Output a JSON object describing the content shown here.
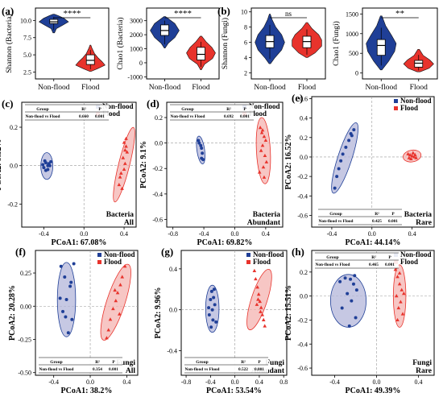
{
  "figure": {
    "colors": {
      "nonflood": "#1f3f97",
      "flood": "#e8332c",
      "nonflood_ellipse": "#b3b6d9",
      "flood_ellipse": "#f4b3b0"
    }
  },
  "chart_data": [
    {
      "id": "a1",
      "panel_label": "(a)",
      "type": "violin",
      "ylabel": "Shannon (Bacteria)",
      "categories": [
        "Non-flood",
        "Flood"
      ],
      "yticks": [
        2.5,
        5.0,
        7.5,
        10.0
      ],
      "ylim": [
        1.5,
        11.8
      ],
      "violins": [
        {
          "group": "Non-flood",
          "min": 8.2,
          "q1": 9.55,
          "median": 9.8,
          "q3": 10.15,
          "max": 10.9,
          "shape": [
            [
              8.2,
              0.05
            ],
            [
              8.8,
              0.18
            ],
            [
              9.3,
              0.6
            ],
            [
              9.8,
              1
            ],
            [
              10.3,
              0.7
            ],
            [
              10.7,
              0.3
            ],
            [
              10.9,
              0.05
            ]
          ]
        },
        {
          "group": "Flood",
          "min": 2.6,
          "q1": 3.6,
          "median": 4.2,
          "q3": 5.0,
          "max": 6.4,
          "shape": [
            [
              2.6,
              0.05
            ],
            [
              3.0,
              0.5
            ],
            [
              3.5,
              1
            ],
            [
              4.0,
              0.8
            ],
            [
              4.5,
              0.55
            ],
            [
              5.2,
              0.28
            ],
            [
              6.0,
              0.1
            ],
            [
              6.4,
              0.03
            ]
          ]
        }
      ],
      "significance": "****"
    },
    {
      "id": "a2",
      "type": "violin",
      "ylabel": "Chao1 (Bacteria)",
      "categories": [
        "Non-flood",
        "Flood"
      ],
      "yticks": [
        -1000,
        0,
        1000,
        2000,
        3000
      ],
      "ylim": [
        -1150,
        3900
      ],
      "violins": [
        {
          "group": "Non-flood",
          "min": 1050,
          "q1": 1950,
          "median": 2300,
          "q3": 2700,
          "max": 3300,
          "shape": [
            [
              1050,
              0.03
            ],
            [
              1400,
              0.25
            ],
            [
              1800,
              0.7
            ],
            [
              2300,
              1
            ],
            [
              2800,
              0.7
            ],
            [
              3100,
              0.3
            ],
            [
              3300,
              0.05
            ]
          ]
        },
        {
          "group": "Flood",
          "min": -500,
          "q1": 200,
          "median": 600,
          "q3": 1100,
          "max": 1900,
          "shape": [
            [
              -500,
              0.03
            ],
            [
              -100,
              0.25
            ],
            [
              300,
              0.8
            ],
            [
              700,
              1
            ],
            [
              1100,
              0.75
            ],
            [
              1500,
              0.35
            ],
            [
              1900,
              0.05
            ]
          ]
        }
      ],
      "significance": "****"
    },
    {
      "id": "b1",
      "panel_label": "(b)",
      "type": "violin",
      "ylabel": "Shannon (Fungi)",
      "categories": [
        "Non-flood",
        "Flood"
      ],
      "yticks": [
        2,
        4,
        6,
        8,
        10
      ],
      "ylim": [
        1.2,
        10.5
      ],
      "violins": [
        {
          "group": "Non-flood",
          "min": 3.2,
          "q1": 5.3,
          "median": 6.1,
          "q3": 6.9,
          "max": 9.7,
          "shape": [
            [
              3.2,
              0.05
            ],
            [
              4.0,
              0.35
            ],
            [
              5.0,
              0.8
            ],
            [
              6.0,
              1
            ],
            [
              7.0,
              0.8
            ],
            [
              8.0,
              0.4
            ],
            [
              9.0,
              0.15
            ],
            [
              9.7,
              0.03
            ]
          ]
        },
        {
          "group": "Flood",
          "min": 4.0,
          "q1": 5.3,
          "median": 6.1,
          "q3": 6.8,
          "max": 8.6,
          "shape": [
            [
              4.0,
              0.05
            ],
            [
              4.6,
              0.55
            ],
            [
              5.5,
              1
            ],
            [
              6.3,
              1
            ],
            [
              7.0,
              0.8
            ],
            [
              7.8,
              0.35
            ],
            [
              8.6,
              0.05
            ]
          ]
        }
      ],
      "significance": "ns"
    },
    {
      "id": "b2",
      "type": "violin",
      "ylabel": "Chao1 (Fungi)",
      "categories": [
        "Non-flood",
        "Flood"
      ],
      "yticks": [
        0,
        500,
        1000,
        1500
      ],
      "ylim": [
        -150,
        1650
      ],
      "violins": [
        {
          "group": "Non-flood",
          "min": 80,
          "q1": 450,
          "median": 700,
          "q3": 850,
          "max": 1450,
          "shape": [
            [
              80,
              0.05
            ],
            [
              300,
              0.5
            ],
            [
              550,
              0.9
            ],
            [
              750,
              1
            ],
            [
              950,
              0.7
            ],
            [
              1200,
              0.3
            ],
            [
              1450,
              0.05
            ]
          ]
        },
        {
          "group": "Flood",
          "min": 30,
          "q1": 150,
          "median": 250,
          "q3": 320,
          "max": 600,
          "shape": [
            [
              30,
              0.1
            ],
            [
              120,
              0.7
            ],
            [
              230,
              1
            ],
            [
              330,
              0.75
            ],
            [
              450,
              0.3
            ],
            [
              600,
              0.05
            ]
          ]
        }
      ],
      "significance": "**"
    },
    {
      "id": "c",
      "panel_label": "(c)",
      "type": "scatter",
      "xlabel": "PCoA1: 67.08%",
      "ylabel": "PCoA2: 9.32%",
      "xticks": [
        -0.4,
        0.0,
        0.4
      ],
      "xlim": [
        -0.62,
        0.52
      ],
      "yticks": [
        -0.2,
        0.0,
        0.2
      ],
      "ylim": [
        -0.32,
        0.33
      ],
      "legend": [
        "Non-flood",
        "Flood"
      ],
      "corner_label": [
        "Bacteria",
        "All"
      ],
      "table": {
        "headers": [
          "Group",
          "R²",
          "P"
        ],
        "row": [
          "Non-flood vs Flood",
          "0.660",
          "0.001"
        ]
      },
      "series": [
        {
          "name": "Non-flood",
          "x": [
            -0.41,
            -0.38,
            -0.35,
            -0.36,
            -0.4,
            -0.33,
            -0.38,
            -0.36,
            -0.34,
            -0.39
          ],
          "y": [
            0.005,
            0.015,
            0.01,
            0.0,
            -0.01,
            0.02,
            -0.025,
            -0.02,
            0.0,
            0.025
          ],
          "ellipse": {
            "cx": -0.37,
            "cy": -0.002,
            "rx": 0.06,
            "ry": 0.07,
            "angle": 0
          }
        },
        {
          "name": "Flood",
          "x": [
            0.4,
            0.42,
            0.41,
            0.43,
            0.39,
            0.41,
            0.37,
            0.36,
            0.35,
            0.38,
            0.42,
            0.4
          ],
          "y": [
            0.12,
            0.1,
            0.08,
            0.07,
            0.04,
            0.01,
            -0.04,
            -0.06,
            -0.1,
            -0.12,
            0.14,
            -0.02
          ],
          "ellipse": {
            "cx": 0.4,
            "cy": 0.005,
            "rx": 0.055,
            "ry": 0.2,
            "angle": 14
          }
        }
      ]
    },
    {
      "id": "d",
      "panel_label": "(d)",
      "type": "scatter",
      "xlabel": "PCoA1: 69.82%",
      "ylabel": "PCoA2: 9.1%",
      "xticks": [
        -0.8,
        -0.4,
        0.0,
        0.4
      ],
      "xlim": [
        -0.88,
        0.62
      ],
      "yticks": [
        -0.6,
        -0.4,
        -0.2,
        0.0,
        0.2
      ],
      "ylim": [
        -0.66,
        0.32
      ],
      "legend": [
        "Non-flood",
        "Flood"
      ],
      "corner_label": [
        "Bacteria",
        "Abundant"
      ],
      "table": {
        "headers": [
          "Group",
          "R²",
          "P"
        ],
        "row": [
          "Non-flood vs Flood",
          "0.692",
          "0.001"
        ]
      },
      "series": [
        {
          "name": "Non-flood",
          "x": [
            -0.47,
            -0.46,
            -0.44,
            -0.43,
            -0.42,
            -0.43,
            -0.41
          ],
          "y": [
            0.02,
            0.0,
            -0.02,
            -0.04,
            -0.08,
            -0.12,
            -0.13
          ],
          "ellipse": {
            "cx": -0.44,
            "cy": -0.055,
            "rx": 0.05,
            "ry": 0.11,
            "angle": -8
          }
        },
        {
          "name": "Flood",
          "x": [
            0.33,
            0.35,
            0.38,
            0.4,
            0.36,
            0.34,
            0.39,
            0.41,
            0.37,
            0.32,
            0.38,
            0.36
          ],
          "y": [
            0.12,
            0.08,
            0.05,
            0.02,
            -0.02,
            -0.06,
            -0.1,
            -0.15,
            -0.19,
            -0.23,
            -0.27,
            0.1
          ],
          "ellipse": {
            "cx": 0.37,
            "cy": -0.06,
            "rx": 0.09,
            "ry": 0.26,
            "angle": -3
          }
        }
      ]
    },
    {
      "id": "e",
      "panel_label": "(e)",
      "type": "scatter",
      "xlabel": "PCoA1: 44.14%",
      "ylabel": "PCoA2: 16.52%",
      "xticks": [
        -0.4,
        0.0,
        0.4
      ],
      "xlim": [
        -0.6,
        0.62
      ],
      "yticks": [
        -0.6,
        -0.4,
        -0.2,
        0.0,
        0.2,
        0.4,
        0.6
      ],
      "ylim": [
        -0.72,
        0.62
      ],
      "legend": [
        "Non-flood",
        "Flood"
      ],
      "corner_label": [
        "Bacteria",
        "Rare"
      ],
      "table": {
        "headers": [
          "Group",
          "R²",
          "P"
        ],
        "row": [
          "Non-flood vs Flood",
          "0.425",
          "0.001"
        ]
      },
      "series": [
        {
          "name": "Non-flood",
          "x": [
            -0.18,
            -0.21,
            -0.23,
            -0.26,
            -0.29,
            -0.31,
            -0.33,
            -0.35,
            -0.37,
            -0.2
          ],
          "y": [
            0.28,
            0.24,
            0.17,
            0.1,
            0.03,
            -0.04,
            -0.12,
            -0.2,
            -0.32,
            0.22
          ],
          "ellipse": {
            "cx": -0.27,
            "cy": -0.01,
            "rx": 0.07,
            "ry": 0.38,
            "angle": 18
          }
        },
        {
          "name": "Flood",
          "x": [
            0.36,
            0.38,
            0.4,
            0.42,
            0.44,
            0.39,
            0.41,
            0.37,
            0.43
          ],
          "y": [
            0.03,
            0.02,
            0.01,
            0.0,
            -0.01,
            -0.02,
            0.04,
            -0.01,
            0.02
          ],
          "ellipse": {
            "cx": 0.4,
            "cy": 0.01,
            "rx": 0.09,
            "ry": 0.06,
            "angle": -10
          }
        }
      ]
    },
    {
      "id": "f",
      "panel_label": "(f)",
      "type": "scatter",
      "xlabel": "PCoA1: 38.2%",
      "ylabel": "PCoA2: 20.28%",
      "xticks": [
        -0.4,
        0.0,
        0.4
      ],
      "xlim": [
        -0.6,
        0.52
      ],
      "yticks": [
        -0.5,
        -0.25,
        0.0,
        0.25
      ],
      "ylim": [
        -0.52,
        0.42
      ],
      "legend": [
        "Non-flood",
        "Flood"
      ],
      "corner_label": [
        "Fungi",
        "All"
      ],
      "table": {
        "headers": [
          "Group",
          "R²",
          "P"
        ],
        "row": [
          "Non-flood vs Flood",
          "0.354",
          "0.001"
        ]
      },
      "series": [
        {
          "name": "Non-flood",
          "x": [
            -0.32,
            -0.28,
            -0.22,
            -0.26,
            -0.3,
            -0.2,
            -0.24,
            -0.33,
            -0.18,
            -0.27,
            -0.21
          ],
          "y": [
            0.3,
            0.22,
            0.15,
            0.05,
            -0.04,
            -0.1,
            -0.2,
            0.06,
            0.32,
            -0.08,
            0.18
          ],
          "ellipse": {
            "cx": -0.26,
            "cy": 0.05,
            "rx": 0.1,
            "ry": 0.28,
            "angle": 0
          }
        },
        {
          "name": "Flood",
          "x": [
            0.38,
            0.35,
            0.33,
            0.3,
            0.28,
            0.25,
            0.22,
            0.2,
            0.18,
            0.27,
            0.32
          ],
          "y": [
            0.3,
            0.22,
            0.16,
            0.1,
            0.04,
            -0.02,
            -0.1,
            -0.18,
            -0.24,
            0.12,
            -0.06
          ],
          "ellipse": {
            "cx": 0.28,
            "cy": 0.03,
            "rx": 0.1,
            "ry": 0.3,
            "angle": 18
          }
        }
      ]
    },
    {
      "id": "g",
      "panel_label": "(g)",
      "type": "scatter",
      "xlabel": "PCoA1: 53.54%",
      "ylabel": "PCoA2: 9.96%",
      "xticks": [
        -0.8,
        -0.4,
        0.0,
        0.4,
        0.8
      ],
      "xlim": [
        -0.88,
        0.85
      ],
      "yticks": [
        -0.4,
        0.0,
        0.4
      ],
      "ylim": [
        -0.64,
        0.58
      ],
      "legend": [
        "Non-flood",
        "Flood"
      ],
      "corner_label": [
        "Fungi",
        "Abundant"
      ],
      "table": {
        "headers": [
          "Group",
          "R²",
          "P"
        ],
        "row": [
          "Non-flood vs Flood",
          "0.522",
          "0.001"
        ]
      },
      "series": [
        {
          "name": "Non-flood",
          "x": [
            -0.38,
            -0.35,
            -0.4,
            -0.33,
            -0.37,
            -0.42,
            -0.36,
            -0.31,
            -0.39,
            -0.34,
            -0.43
          ],
          "y": [
            0.18,
            0.12,
            0.1,
            0.05,
            0.0,
            -0.05,
            -0.1,
            -0.12,
            -0.17,
            0.2,
            0.02
          ],
          "ellipse": {
            "cx": -0.37,
            "cy": 0.01,
            "rx": 0.11,
            "ry": 0.23,
            "angle": 0
          }
        },
        {
          "name": "Flood",
          "x": [
            0.32,
            0.34,
            0.37,
            0.39,
            0.41,
            0.43,
            0.45,
            0.47,
            0.49,
            0.38,
            0.36,
            0.42
          ],
          "y": [
            0.38,
            0.3,
            0.22,
            0.15,
            0.08,
            0.02,
            -0.05,
            -0.1,
            -0.16,
            0.1,
            0.05,
            -0.02
          ],
          "ellipse": {
            "cx": 0.4,
            "cy": 0.1,
            "rx": 0.13,
            "ry": 0.31,
            "angle": 18
          }
        }
      ]
    },
    {
      "id": "h",
      "panel_label": "(h)",
      "type": "scatter",
      "xlabel": "PCoA1: 49.39%",
      "ylabel": "PCoA2: 15.51%",
      "xticks": [
        -0.4,
        0.0,
        0.4
      ],
      "xlim": [
        -0.62,
        0.55
      ],
      "yticks": [
        -0.6,
        -0.4,
        -0.2,
        0.0,
        0.2
      ],
      "ylim": [
        -0.66,
        0.38
      ],
      "legend": [
        "Non-flood",
        "Flood"
      ],
      "corner_label": [
        "Fungi",
        "Rare"
      ],
      "table": {
        "headers": [
          "Group",
          "R²",
          "P"
        ],
        "row": [
          "Non-flood vs Flood",
          "0.465",
          "0.001"
        ]
      },
      "series": [
        {
          "name": "Non-flood",
          "x": [
            -0.35,
            -0.3,
            -0.25,
            -0.22,
            -0.19,
            -0.28,
            -0.24,
            -0.33,
            -0.2,
            -0.26,
            -0.21
          ],
          "y": [
            0.12,
            0.15,
            0.14,
            0.1,
            0.05,
            0.02,
            -0.04,
            -0.1,
            -0.18,
            -0.25,
            0.17
          ],
          "ellipse": {
            "cx": -0.27,
            "cy": -0.04,
            "rx": 0.17,
            "ry": 0.22,
            "angle": 0
          }
        },
        {
          "name": "Flood",
          "x": [
            0.18,
            0.2,
            0.22,
            0.24,
            0.19,
            0.23,
            0.21,
            0.25,
            0.2,
            0.22,
            0.26
          ],
          "y": [
            0.22,
            0.16,
            0.1,
            0.05,
            0.0,
            -0.05,
            -0.1,
            -0.15,
            -0.2,
            0.19,
            0.02
          ],
          "ellipse": {
            "cx": 0.22,
            "cy": 0.0,
            "rx": 0.06,
            "ry": 0.26,
            "angle": 0
          }
        }
      ]
    }
  ]
}
